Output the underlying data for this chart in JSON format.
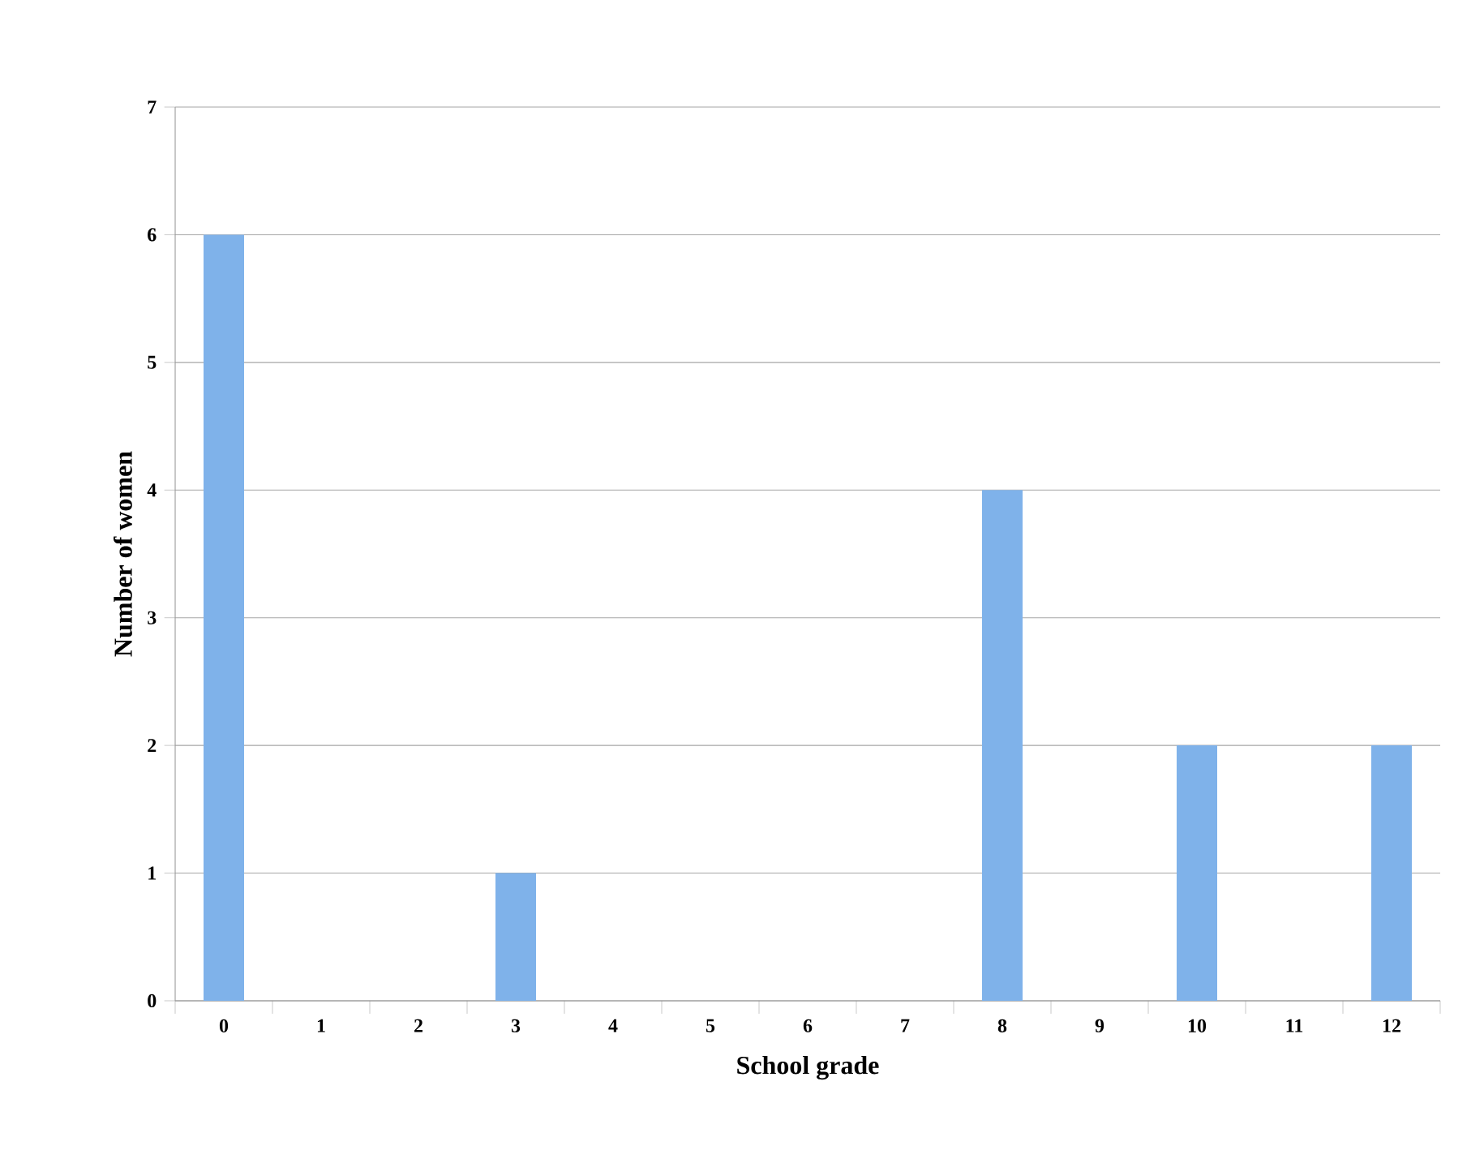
{
  "chart_data": {
    "type": "bar",
    "xlabel": "School grade",
    "ylabel": "Number of women",
    "categories": [
      "0",
      "1",
      "2",
      "3",
      "4",
      "5",
      "6",
      "7",
      "8",
      "9",
      "10",
      "11",
      "12"
    ],
    "values": [
      6,
      0,
      0,
      1,
      0,
      0,
      0,
      0,
      4,
      0,
      2,
      0,
      2
    ],
    "color": "#7fb2ea",
    "ylim": [
      0,
      7
    ],
    "yticks": [
      0,
      1,
      2,
      3,
      4,
      5,
      6,
      7
    ],
    "grid": "y"
  }
}
